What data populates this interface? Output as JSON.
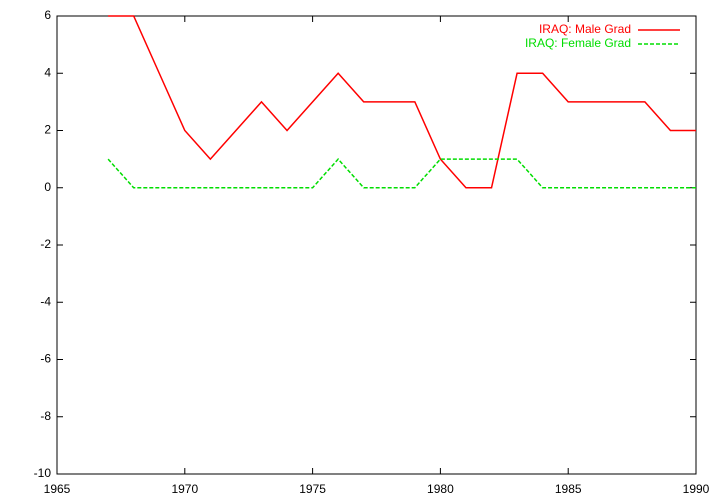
{
  "chart_data": {
    "type": "line",
    "x": [
      1967,
      1968,
      1969,
      1970,
      1971,
      1972,
      1973,
      1974,
      1975,
      1976,
      1977,
      1978,
      1979,
      1980,
      1981,
      1982,
      1983,
      1984,
      1985,
      1986,
      1987,
      1988,
      1989,
      1990
    ],
    "series": [
      {
        "name": "IRAQ: Male Grad",
        "color": "#ff0000",
        "dash": false,
        "values": [
          6,
          6,
          4,
          2,
          1,
          2,
          3,
          2,
          3,
          4,
          3,
          3,
          3,
          1,
          0,
          0,
          4,
          4,
          3,
          3,
          3,
          3,
          2,
          2
        ]
      },
      {
        "name": "IRAQ: Female Grad",
        "color": "#00dd00",
        "dash": true,
        "values": [
          1,
          0,
          0,
          0,
          0,
          0,
          0,
          0,
          0,
          1,
          0,
          0,
          0,
          1,
          1,
          1,
          1,
          0,
          0,
          0,
          0,
          0,
          0,
          0
        ]
      }
    ],
    "xlim": [
      1965,
      1990
    ],
    "xticks": [
      1965,
      1970,
      1975,
      1980,
      1985,
      1990
    ],
    "ylim": [
      -10,
      6
    ],
    "yticks": [
      -10,
      -8,
      -6,
      -4,
      -2,
      0,
      2,
      4,
      6
    ],
    "legend": "top-right"
  }
}
